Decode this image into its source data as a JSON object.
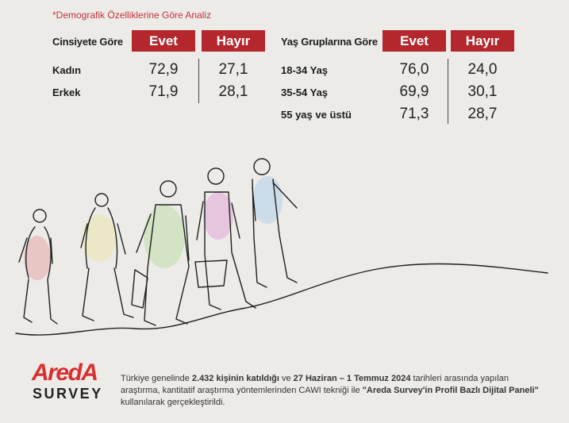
{
  "note": "*Demografik Özelliklerine Göre Analiz",
  "chart_data": [
    {
      "type": "table",
      "row_header": "Cinsiyete Göre",
      "columns": [
        "Evet",
        "Hayır"
      ],
      "rows": [
        {
          "label": "Kadın",
          "evet": "72,9",
          "hayir": "27,1"
        },
        {
          "label": "Erkek",
          "evet": "71,9",
          "hayir": "28,1"
        }
      ]
    },
    {
      "type": "table",
      "row_header": "Yaş Gruplarına Göre",
      "columns": [
        "Evet",
        "Hayır"
      ],
      "rows": [
        {
          "label": "18-34 Yaş",
          "evet": "76,0",
          "hayir": "24,0"
        },
        {
          "label": "35-54 Yaş",
          "evet": "69,9",
          "hayir": "30,1"
        },
        {
          "label": "55 yaş ve üstü",
          "evet": "71,3",
          "hayir": "28,7"
        }
      ]
    }
  ],
  "colors": {
    "accent": "#b3272d",
    "logo": "#d8302e",
    "background": "#ecebe8"
  },
  "brand": {
    "name": "AredA",
    "sub": "SURVEY"
  },
  "footnote": {
    "t1": "Türkiye genelinde ",
    "b1": "2.432 kişinin katıldığı",
    "t2": " ve ",
    "b2": "27 Haziran – 1 Temmuz 2024",
    "t3": " tarihleri arasında yapılan araştırma, kantitatif araştırma yöntemlerinden CAWI tekniği ile ",
    "b3": "\"Areda Survey'in Profil Bazlı Dijital Paneli\"",
    "t4": " kullanılarak gerçekleştirildi."
  }
}
